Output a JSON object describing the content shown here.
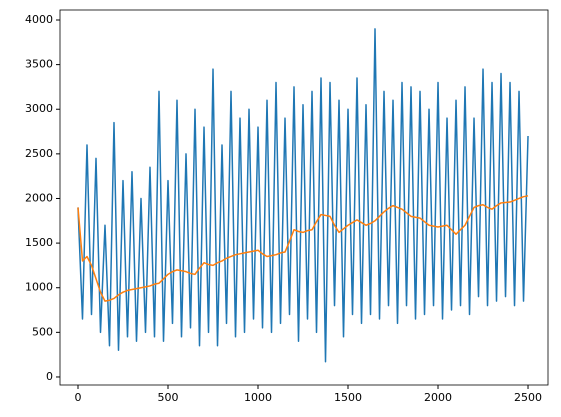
{
  "chart_data": {
    "type": "line",
    "x": [
      0,
      25,
      50,
      75,
      100,
      125,
      150,
      175,
      200,
      225,
      250,
      275,
      300,
      325,
      350,
      375,
      400,
      425,
      450,
      475,
      500,
      525,
      550,
      575,
      600,
      625,
      650,
      675,
      700,
      725,
      750,
      775,
      800,
      825,
      850,
      875,
      900,
      925,
      950,
      975,
      1000,
      1025,
      1050,
      1075,
      1100,
      1125,
      1150,
      1175,
      1200,
      1225,
      1250,
      1275,
      1300,
      1325,
      1350,
      1375,
      1400,
      1425,
      1450,
      1475,
      1500,
      1525,
      1550,
      1575,
      1600,
      1625,
      1650,
      1675,
      1700,
      1725,
      1750,
      1775,
      1800,
      1825,
      1850,
      1875,
      1900,
      1925,
      1950,
      1975,
      2000,
      2025,
      2050,
      2075,
      2100,
      2125,
      2150,
      2175,
      2200,
      2225,
      2250,
      2275,
      2300,
      2325,
      2350,
      2375,
      2400,
      2425,
      2450,
      2475,
      2500
    ],
    "series": [
      {
        "color": "#1f77b4",
        "values": [
          1900,
          650,
          2600,
          700,
          2450,
          500,
          1700,
          350,
          2850,
          300,
          2200,
          450,
          2300,
          400,
          2000,
          500,
          2350,
          450,
          3200,
          400,
          2200,
          600,
          3100,
          450,
          2500,
          550,
          3000,
          350,
          2800,
          500,
          3450,
          350,
          2600,
          600,
          3200,
          450,
          2900,
          500,
          3000,
          650,
          2800,
          550,
          3100,
          500,
          3300,
          600,
          2900,
          700,
          3250,
          400,
          3050,
          650,
          3200,
          500,
          3350,
          170,
          3300,
          800,
          3100,
          450,
          3000,
          700,
          3350,
          600,
          3050,
          700,
          3900,
          650,
          3200,
          800,
          3100,
          600,
          3300,
          800,
          3250,
          650,
          3200,
          700,
          3000,
          800,
          3300,
          650,
          2900,
          750,
          3100,
          800,
          3250,
          700,
          2900,
          900,
          3450,
          800,
          3300,
          850,
          3400,
          900,
          3300,
          800,
          3200,
          850,
          2700
        ]
      },
      {
        "color": "#ff7f0e",
        "values": [
          1900,
          1300,
          1350,
          1250,
          1100,
          950,
          850,
          860,
          880,
          920,
          950,
          970,
          980,
          990,
          1000,
          1010,
          1020,
          1040,
          1050,
          1100,
          1150,
          1180,
          1200,
          1190,
          1180,
          1160,
          1150,
          1220,
          1280,
          1260,
          1250,
          1280,
          1300,
          1330,
          1350,
          1370,
          1380,
          1390,
          1400,
          1410,
          1420,
          1380,
          1350,
          1360,
          1370,
          1390,
          1400,
          1520,
          1650,
          1630,
          1620,
          1640,
          1650,
          1740,
          1820,
          1810,
          1800,
          1700,
          1620,
          1660,
          1700,
          1730,
          1760,
          1730,
          1700,
          1720,
          1750,
          1800,
          1850,
          1890,
          1920,
          1900,
          1880,
          1840,
          1800,
          1790,
          1780,
          1740,
          1700,
          1690,
          1680,
          1690,
          1700,
          1650,
          1600,
          1650,
          1700,
          1800,
          1900,
          1920,
          1930,
          1900,
          1880,
          1920,
          1950,
          1955,
          1960,
          1980,
          2000,
          2020,
          2030
        ]
      }
    ],
    "xlim": [
      -100,
      2611
    ],
    "ylim": [
      -90,
      4112
    ],
    "xticks": [
      0,
      500,
      1000,
      1500,
      2000,
      2500
    ],
    "yticks": [
      0,
      500,
      1000,
      1500,
      2000,
      2500,
      3000,
      3500,
      4000
    ]
  }
}
